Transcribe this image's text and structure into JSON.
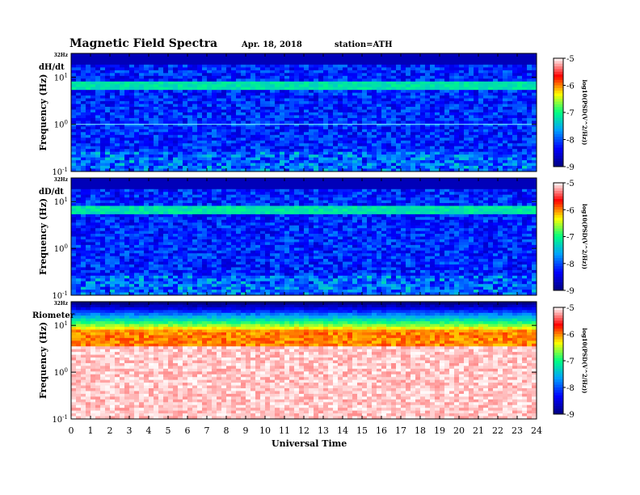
{
  "header": {
    "title": "Magnetic Field Spectra",
    "date": "Apr. 18, 2018",
    "station": "station=ATH"
  },
  "chart_data": {
    "type": "heatmap",
    "x_axis": {
      "label": "Universal Time",
      "range": [
        0,
        24
      ],
      "ticks": [
        "0",
        "1",
        "2",
        "3",
        "4",
        "5",
        "6",
        "7",
        "8",
        "9",
        "10",
        "11",
        "12",
        "13",
        "14",
        "15",
        "16",
        "17",
        "18",
        "19",
        "20",
        "21",
        "22",
        "23",
        "24"
      ]
    },
    "y_axis": {
      "label": "Frequency (Hz)",
      "scale": "log",
      "range": [
        0.1,
        32
      ],
      "tick_top_label": "32Hz",
      "tick_labels": [
        {
          "base": "10",
          "exp": "1"
        },
        {
          "base": "10",
          "exp": "0"
        },
        {
          "base": "10",
          "exp": "-1"
        }
      ]
    },
    "colorbar": {
      "label": "log10(PSD(V^2/Hz))",
      "range": [
        -9,
        -5
      ],
      "ticks": [
        "-5",
        "-6",
        "-7",
        "-8",
        "-9"
      ],
      "colors": [
        "#000080",
        "#0000ff",
        "#00a0ff",
        "#00ff80",
        "#ffff00",
        "#ff0000",
        "#ffffff"
      ]
    },
    "panels": [
      {
        "name": "dH/dt",
        "type": "heatmap",
        "dominant_level": -8.2,
        "band_level_at_7_5Hz": -7.2,
        "line_at_1Hz": true
      },
      {
        "name": "dD/dt",
        "type": "heatmap",
        "dominant_level": -8.2,
        "band_level_at_7_5Hz": -7.2,
        "line_at_1Hz": false
      },
      {
        "name": "Riometer",
        "type": "heatmap",
        "dominant_level": -5.0,
        "band_level_at_7_5Hz": -6.0,
        "line_at_1Hz": false
      }
    ]
  }
}
